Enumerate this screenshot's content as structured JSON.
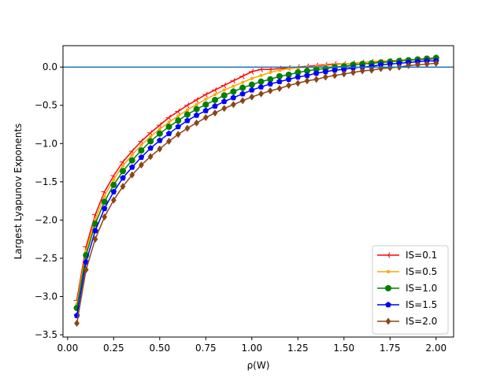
{
  "chart_data": {
    "type": "line",
    "xlabel": "ρ(W)",
    "ylabel": "Largest Lyapunov Exponents",
    "xlim": [
      -0.025,
      2.095
    ],
    "ylim": [
      -3.53,
      0.28
    ],
    "x_ticks": [
      "0.00",
      "0.25",
      "0.50",
      "0.75",
      "1.00",
      "1.25",
      "1.50",
      "1.75",
      "2.00"
    ],
    "y_ticks": [
      "0.0",
      "−0.5",
      "−1.0",
      "−1.5",
      "−2.0",
      "−2.5",
      "−3.0",
      "−3.5"
    ],
    "x_tick_values": [
      0,
      0.25,
      0.5,
      0.75,
      1.0,
      1.25,
      1.5,
      1.75,
      2.0
    ],
    "y_tick_values": [
      0,
      -0.5,
      -1.0,
      -1.5,
      -2.0,
      -2.5,
      -3.0,
      -3.5
    ],
    "reference_line": {
      "y": 0,
      "color": "#1f77b4"
    },
    "grid": false,
    "legend_position": "lower-right",
    "x": [
      0.05,
      0.1,
      0.15,
      0.2,
      0.25,
      0.3,
      0.35,
      0.4,
      0.45,
      0.5,
      0.55,
      0.6,
      0.65,
      0.7,
      0.75,
      0.8,
      0.85,
      0.9,
      0.95,
      1.0,
      1.05,
      1.1,
      1.15,
      1.2,
      1.25,
      1.3,
      1.35,
      1.4,
      1.45,
      1.5,
      1.55,
      1.6,
      1.65,
      1.7,
      1.75,
      1.8,
      1.85,
      1.9,
      1.95,
      2.0
    ],
    "series": [
      {
        "name": "IS=0.1",
        "color": "#ff0000",
        "marker": "tri",
        "values": [
          -3.05,
          -2.35,
          -1.93,
          -1.63,
          -1.42,
          -1.24,
          -1.1,
          -0.97,
          -0.86,
          -0.76,
          -0.66,
          -0.58,
          -0.5,
          -0.43,
          -0.36,
          -0.3,
          -0.24,
          -0.18,
          -0.12,
          -0.06,
          -0.03,
          -0.03,
          -0.02,
          -0.01,
          0.0,
          0.01,
          0.02,
          0.03,
          0.04,
          0.04,
          0.05,
          0.06,
          0.07,
          0.07,
          0.08,
          0.09,
          0.09,
          0.1,
          0.1,
          0.11
        ]
      },
      {
        "name": "IS=0.5",
        "color": "#ffa500",
        "marker": "point",
        "values": [
          -3.1,
          -2.4,
          -1.99,
          -1.69,
          -1.47,
          -1.29,
          -1.15,
          -1.02,
          -0.91,
          -0.81,
          -0.72,
          -0.64,
          -0.56,
          -0.49,
          -0.42,
          -0.36,
          -0.3,
          -0.25,
          -0.2,
          -0.15,
          -0.11,
          -0.07,
          -0.04,
          -0.02,
          -0.01,
          0.0,
          0.01,
          0.02,
          0.03,
          0.04,
          0.05,
          0.06,
          0.07,
          0.08,
          0.08,
          0.09,
          0.1,
          0.1,
          0.11,
          0.11
        ]
      },
      {
        "name": "IS=1.0",
        "color": "#008000",
        "marker": "circle",
        "values": [
          -3.15,
          -2.46,
          -2.05,
          -1.76,
          -1.54,
          -1.36,
          -1.22,
          -1.09,
          -0.97,
          -0.87,
          -0.78,
          -0.7,
          -0.62,
          -0.55,
          -0.49,
          -0.43,
          -0.37,
          -0.32,
          -0.27,
          -0.23,
          -0.19,
          -0.16,
          -0.12,
          -0.1,
          -0.07,
          -0.05,
          -0.03,
          -0.02,
          0.0,
          0.01,
          0.03,
          0.04,
          0.05,
          0.06,
          0.07,
          0.08,
          0.09,
          0.1,
          0.11,
          0.12
        ]
      },
      {
        "name": "IS=1.5",
        "color": "#0000ff",
        "marker": "pentagon",
        "values": [
          -3.25,
          -2.55,
          -2.14,
          -1.85,
          -1.63,
          -1.45,
          -1.31,
          -1.18,
          -1.06,
          -0.96,
          -0.87,
          -0.78,
          -0.7,
          -0.63,
          -0.57,
          -0.51,
          -0.45,
          -0.4,
          -0.35,
          -0.3,
          -0.26,
          -0.22,
          -0.19,
          -0.16,
          -0.13,
          -0.11,
          -0.08,
          -0.06,
          -0.04,
          -0.03,
          -0.01,
          0.0,
          0.01,
          0.03,
          0.04,
          0.05,
          0.06,
          0.07,
          0.08,
          0.08
        ]
      },
      {
        "name": "IS=2.0",
        "color": "#8b4513",
        "marker": "diamond",
        "values": [
          -3.35,
          -2.65,
          -2.25,
          -1.96,
          -1.74,
          -1.56,
          -1.41,
          -1.28,
          -1.17,
          -1.07,
          -0.97,
          -0.88,
          -0.8,
          -0.73,
          -0.66,
          -0.6,
          -0.54,
          -0.49,
          -0.44,
          -0.39,
          -0.35,
          -0.31,
          -0.28,
          -0.24,
          -0.21,
          -0.18,
          -0.16,
          -0.13,
          -0.11,
          -0.09,
          -0.07,
          -0.05,
          -0.04,
          -0.02,
          -0.01,
          0.0,
          0.02,
          0.03,
          0.04,
          0.05
        ]
      }
    ]
  }
}
